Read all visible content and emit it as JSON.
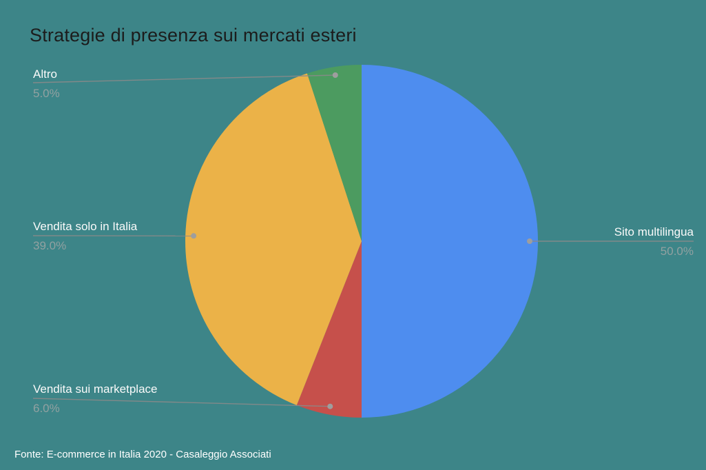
{
  "colors": {
    "background": "#3D8588",
    "title_text": "#1C1C1C",
    "label_text": "#FAFAFA",
    "percent_text": "#92A1A1",
    "leader_line": "#8A8A8A",
    "leader_dot": "#9E9E9E"
  },
  "chart_data": {
    "type": "pie",
    "title": "Strategie di presenza sui mercati esteri",
    "source": "Fonte: E-commerce in Italia 2020 - Casaleggio Associati",
    "direction": "clockwise",
    "start_angle_deg": 0,
    "legend_position": "none",
    "labels_style": "outside-with-leader-lines",
    "slices": [
      {
        "label": "Sito multilingua",
        "value": 50.0,
        "pct_label": "50.0%",
        "color": "#4E8DEF"
      },
      {
        "label": "Vendita sui marketplace",
        "value": 6.0,
        "pct_label": "6.0%",
        "color": "#C6504B"
      },
      {
        "label": "Vendita solo in Italia",
        "value": 39.0,
        "pct_label": "39.0%",
        "color": "#EBB248"
      },
      {
        "label": "Altro",
        "value": 5.0,
        "pct_label": "5.0%",
        "color": "#4C9B60"
      }
    ]
  }
}
